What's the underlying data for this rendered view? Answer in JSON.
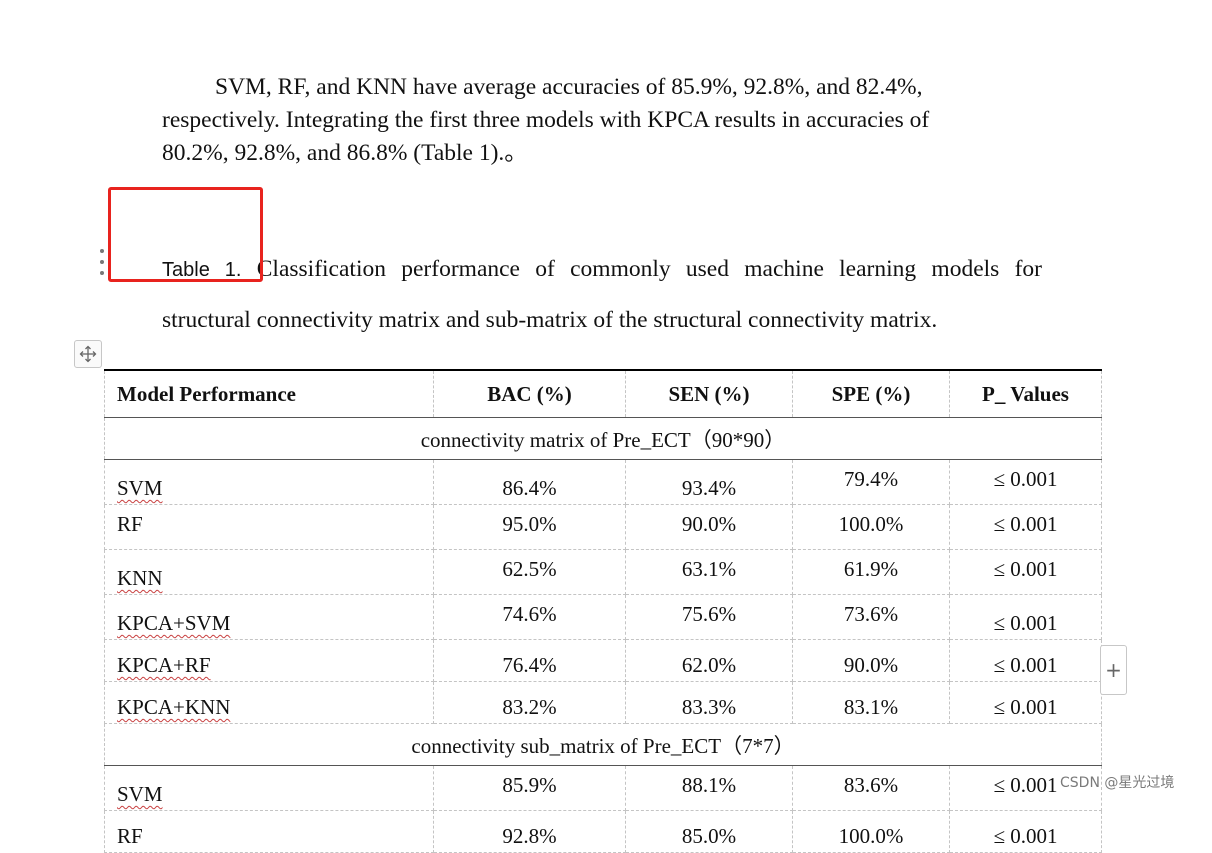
{
  "paragraph": {
    "line1": "SVM, RF, and KNN have average accuracies of 85.9%, 92.8%, and 82.4%,",
    "line2": "respectively. Integrating the first three models with KPCA results in accuracies of",
    "line3": "80.2%, 92.8%, and 86.8% (Table 1).。"
  },
  "caption": {
    "label": "Table 1.",
    "text": " Classification performance of commonly used machine learning models for structural connectivity matrix and sub-matrix of the structural connectivity matrix."
  },
  "table": {
    "headers": [
      "Model Performance",
      "BAC (%)",
      "SEN (%)",
      "SPE (%)",
      "P_ Values"
    ],
    "group1_title": "connectivity matrix of Pre_ECT（90*90）",
    "group1_rows": [
      [
        "SVM",
        "86.4%",
        "93.4%",
        "79.4%",
        "≤ 0.001"
      ],
      [
        "RF",
        "95.0%",
        "90.0%",
        "100.0%",
        "≤ 0.001"
      ],
      [
        "KNN",
        "62.5%",
        "63.1%",
        "61.9%",
        "≤ 0.001"
      ],
      [
        "KPCA+SVM",
        "74.6%",
        "75.6%",
        "73.6%",
        "≤ 0.001"
      ],
      [
        "KPCA+RF",
        "76.4%",
        "62.0%",
        "90.0%",
        "≤ 0.001"
      ],
      [
        "KPCA+KNN",
        "83.2%",
        "83.3%",
        "83.1%",
        "≤ 0.001"
      ]
    ],
    "group2_title": "connectivity sub_matrix of Pre_ECT（7*7）",
    "group2_rows": [
      [
        "SVM",
        "85.9%",
        "88.1%",
        "83.6%",
        "≤ 0.001"
      ],
      [
        "RF",
        "92.8%",
        "85.0%",
        "100.0%",
        "≤ 0.001"
      ]
    ]
  },
  "watermark": "CSDN @星光过境",
  "colors": {
    "highlight": "#e8231e",
    "spellcheck": "#c84040"
  }
}
